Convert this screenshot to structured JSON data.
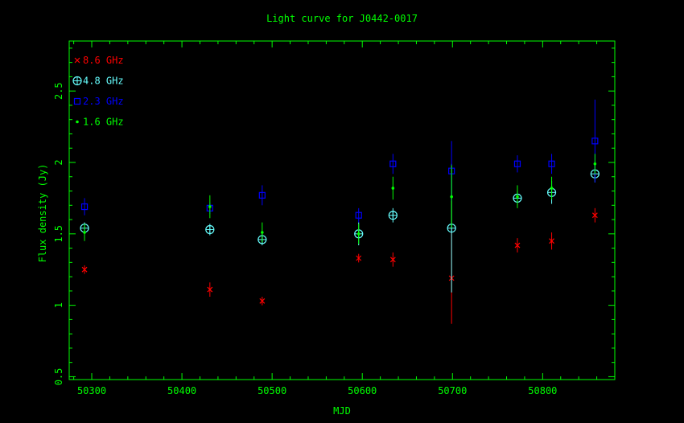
{
  "chart_data": {
    "type": "scatter",
    "title": "Light curve for J0442-0017",
    "xlabel": "MJD",
    "ylabel": "Flux density (Jy)",
    "xlim": [
      50275,
      50880
    ],
    "ylim": [
      0.48,
      2.85
    ],
    "x_ticks": [
      50300,
      50400,
      50500,
      50600,
      50700,
      50800
    ],
    "y_ticks": [
      0.5,
      1,
      1.5,
      2,
      2.5
    ],
    "y_tick_labels": [
      "0.5",
      "1",
      "1.5",
      "2",
      "2.5"
    ],
    "grid": false,
    "legend_position": "top-left",
    "colors": {
      "axes": "#00ff00",
      "title": "#00ff00",
      "background": "#000000"
    },
    "series": [
      {
        "name": "8.6 GHz",
        "marker": "x",
        "color": "#ff0000",
        "points": [
          {
            "x": 50292,
            "y": 1.25,
            "err": 0.03
          },
          {
            "x": 50431,
            "y": 1.11,
            "err": 0.05
          },
          {
            "x": 50489,
            "y": 1.03,
            "err": 0.03
          },
          {
            "x": 50596,
            "y": 1.33,
            "err": 0.03
          },
          {
            "x": 50634,
            "y": 1.32,
            "err": 0.05
          },
          {
            "x": 50699,
            "y": 1.19,
            "err": 0.32
          },
          {
            "x": 50772,
            "y": 1.42,
            "err": 0.05
          },
          {
            "x": 50810,
            "y": 1.45,
            "err": 0.06
          },
          {
            "x": 50858,
            "y": 1.63,
            "err": 0.05
          }
        ]
      },
      {
        "name": "4.8 GHz",
        "marker": "circle-plus",
        "color": "#66ffff",
        "points": [
          {
            "x": 50292,
            "y": 1.54,
            "err": 0.04
          },
          {
            "x": 50431,
            "y": 1.53,
            "err": 0.04
          },
          {
            "x": 50489,
            "y": 1.46,
            "err": 0.04
          },
          {
            "x": 50596,
            "y": 1.5,
            "err": 0.08
          },
          {
            "x": 50634,
            "y": 1.63,
            "err": 0.05
          },
          {
            "x": 50699,
            "y": 1.54,
            "err": 0.45
          },
          {
            "x": 50772,
            "y": 1.75,
            "err": 0.05
          },
          {
            "x": 50810,
            "y": 1.79,
            "err": 0.08
          },
          {
            "x": 50858,
            "y": 1.92,
            "err": 0.06
          }
        ]
      },
      {
        "name": "2.3 GHz",
        "marker": "square",
        "color": "#0000ff",
        "points": [
          {
            "x": 50292,
            "y": 1.69,
            "err": 0.06
          },
          {
            "x": 50431,
            "y": 1.68,
            "err": 0.04
          },
          {
            "x": 50489,
            "y": 1.77,
            "err": 0.07
          },
          {
            "x": 50596,
            "y": 1.63,
            "err": 0.05
          },
          {
            "x": 50634,
            "y": 1.99,
            "err": 0.07
          },
          {
            "x": 50699,
            "y": 1.94,
            "err": 0.21
          },
          {
            "x": 50772,
            "y": 1.99,
            "err": 0.06
          },
          {
            "x": 50810,
            "y": 1.99,
            "err": 0.07
          },
          {
            "x": 50858,
            "y": 2.15,
            "err": 0.29
          }
        ]
      },
      {
        "name": "1.6 GHz",
        "marker": "dot",
        "color": "#00ff00",
        "points": [
          {
            "x": 50292,
            "y": 1.51,
            "err": 0.06
          },
          {
            "x": 50431,
            "y": 1.69,
            "err": 0.08
          },
          {
            "x": 50489,
            "y": 1.51,
            "err": 0.07
          },
          {
            "x": 50596,
            "y": 1.5,
            "err": 0.07
          },
          {
            "x": 50634,
            "y": 1.82,
            "err": 0.08
          },
          {
            "x": 50699,
            "y": 1.76,
            "err": 0.22
          },
          {
            "x": 50772,
            "y": 1.76,
            "err": 0.08
          },
          {
            "x": 50810,
            "y": 1.82,
            "err": 0.08
          },
          {
            "x": 50858,
            "y": 1.99,
            "err": 0.07
          }
        ]
      }
    ]
  }
}
